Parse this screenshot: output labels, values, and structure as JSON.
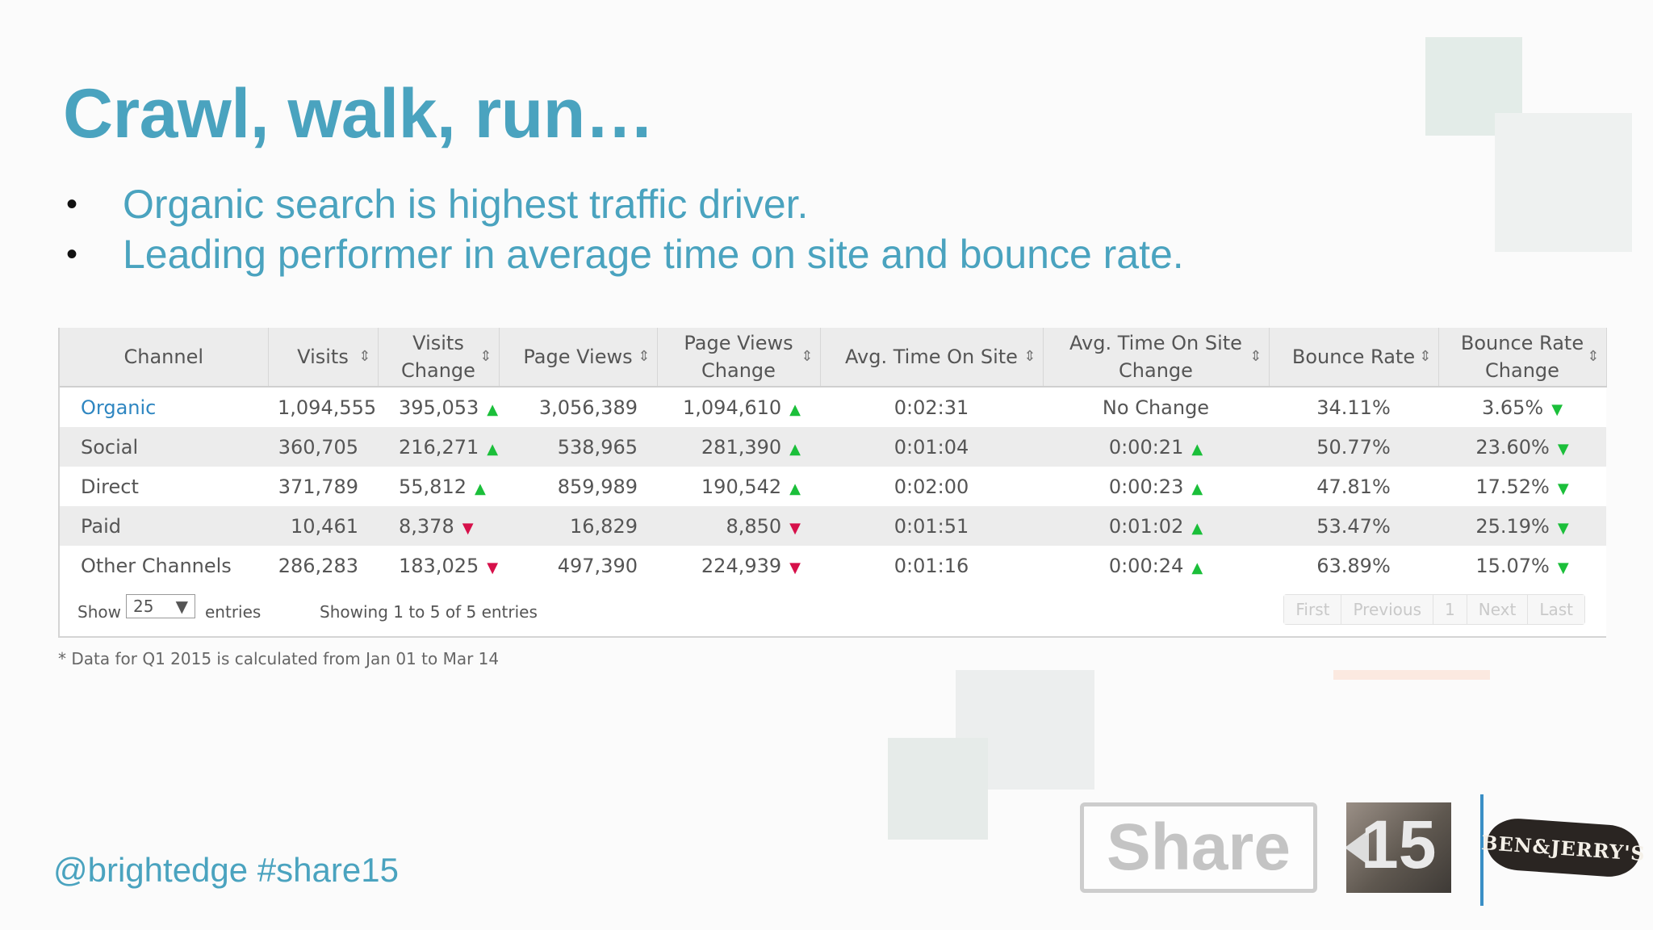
{
  "slide": {
    "title": "Crawl, walk, run…",
    "bullets": [
      {
        "marker": "•",
        "text": "Organic search is highest traffic driver."
      },
      {
        "marker": "•",
        "text": "Leading performer in average time on site and bounce rate."
      }
    ],
    "handle": "@brightedge #share15",
    "footnote": "* Data for Q1 2015 is calculated from Jan 01 to Mar 14"
  },
  "table": {
    "columns": [
      {
        "label": "Channel"
      },
      {
        "label": "Visits"
      },
      {
        "label": "Visits Change"
      },
      {
        "label": "Page Views"
      },
      {
        "label": "Page Views Change"
      },
      {
        "label": "Avg. Time On Site"
      },
      {
        "label": "Avg. Time On Site Change"
      },
      {
        "label": "Bounce Rate"
      },
      {
        "label": "Bounce Rate Change"
      }
    ],
    "sort_icon": "⇕",
    "rows": [
      {
        "channel": "Organic",
        "visits": "1,094,555",
        "visits_change": "395,053",
        "visits_dir": "up",
        "page_views": "3,056,389",
        "pv_change": "1,094,610",
        "pv_dir": "up",
        "avg_time": "0:02:31",
        "avg_time_change": "No Change",
        "at_dir": "none",
        "bounce": "34.11%",
        "bounce_change": "3.65%",
        "br_dir": "down-good"
      },
      {
        "channel": "Social",
        "visits": "360,705",
        "visits_change": "216,271",
        "visits_dir": "up",
        "page_views": "538,965",
        "pv_change": "281,390",
        "pv_dir": "up",
        "avg_time": "0:01:04",
        "avg_time_change": "0:00:21",
        "at_dir": "up",
        "bounce": "50.77%",
        "bounce_change": "23.60%",
        "br_dir": "down-good"
      },
      {
        "channel": "Direct",
        "visits": "371,789",
        "visits_change": "55,812",
        "visits_dir": "up",
        "page_views": "859,989",
        "pv_change": "190,542",
        "pv_dir": "up",
        "avg_time": "0:02:00",
        "avg_time_change": "0:00:23",
        "at_dir": "up",
        "bounce": "47.81%",
        "bounce_change": "17.52%",
        "br_dir": "down-good"
      },
      {
        "channel": "Paid",
        "visits": "10,461",
        "visits_change": "8,378",
        "visits_dir": "down",
        "page_views": "16,829",
        "pv_change": "8,850",
        "pv_dir": "down",
        "avg_time": "0:01:51",
        "avg_time_change": "0:01:02",
        "at_dir": "up",
        "bounce": "53.47%",
        "bounce_change": "25.19%",
        "br_dir": "down-good"
      },
      {
        "channel": "Other Channels",
        "visits": "286,283",
        "visits_change": "183,025",
        "visits_dir": "down",
        "page_views": "497,390",
        "pv_change": "224,939",
        "pv_dir": "down",
        "avg_time": "0:01:16",
        "avg_time_change": "0:00:24",
        "at_dir": "up",
        "bounce": "63.89%",
        "bounce_change": "15.07%",
        "br_dir": "down-good"
      }
    ],
    "footer": {
      "show_label": "Show",
      "entries_value": "25",
      "entries_label": "entries",
      "info": "Showing 1 to 5 of 5 entries",
      "pager": [
        "First",
        "Previous",
        "1",
        "Next",
        "Last"
      ]
    }
  },
  "colors": {
    "accent": "#4aa3bf",
    "up": "#1bbf3a",
    "down": "#d6104a"
  },
  "logos": {
    "share_text": "Share",
    "share_number": "15",
    "ben_jerrys": "BEN&JERRY'S"
  }
}
